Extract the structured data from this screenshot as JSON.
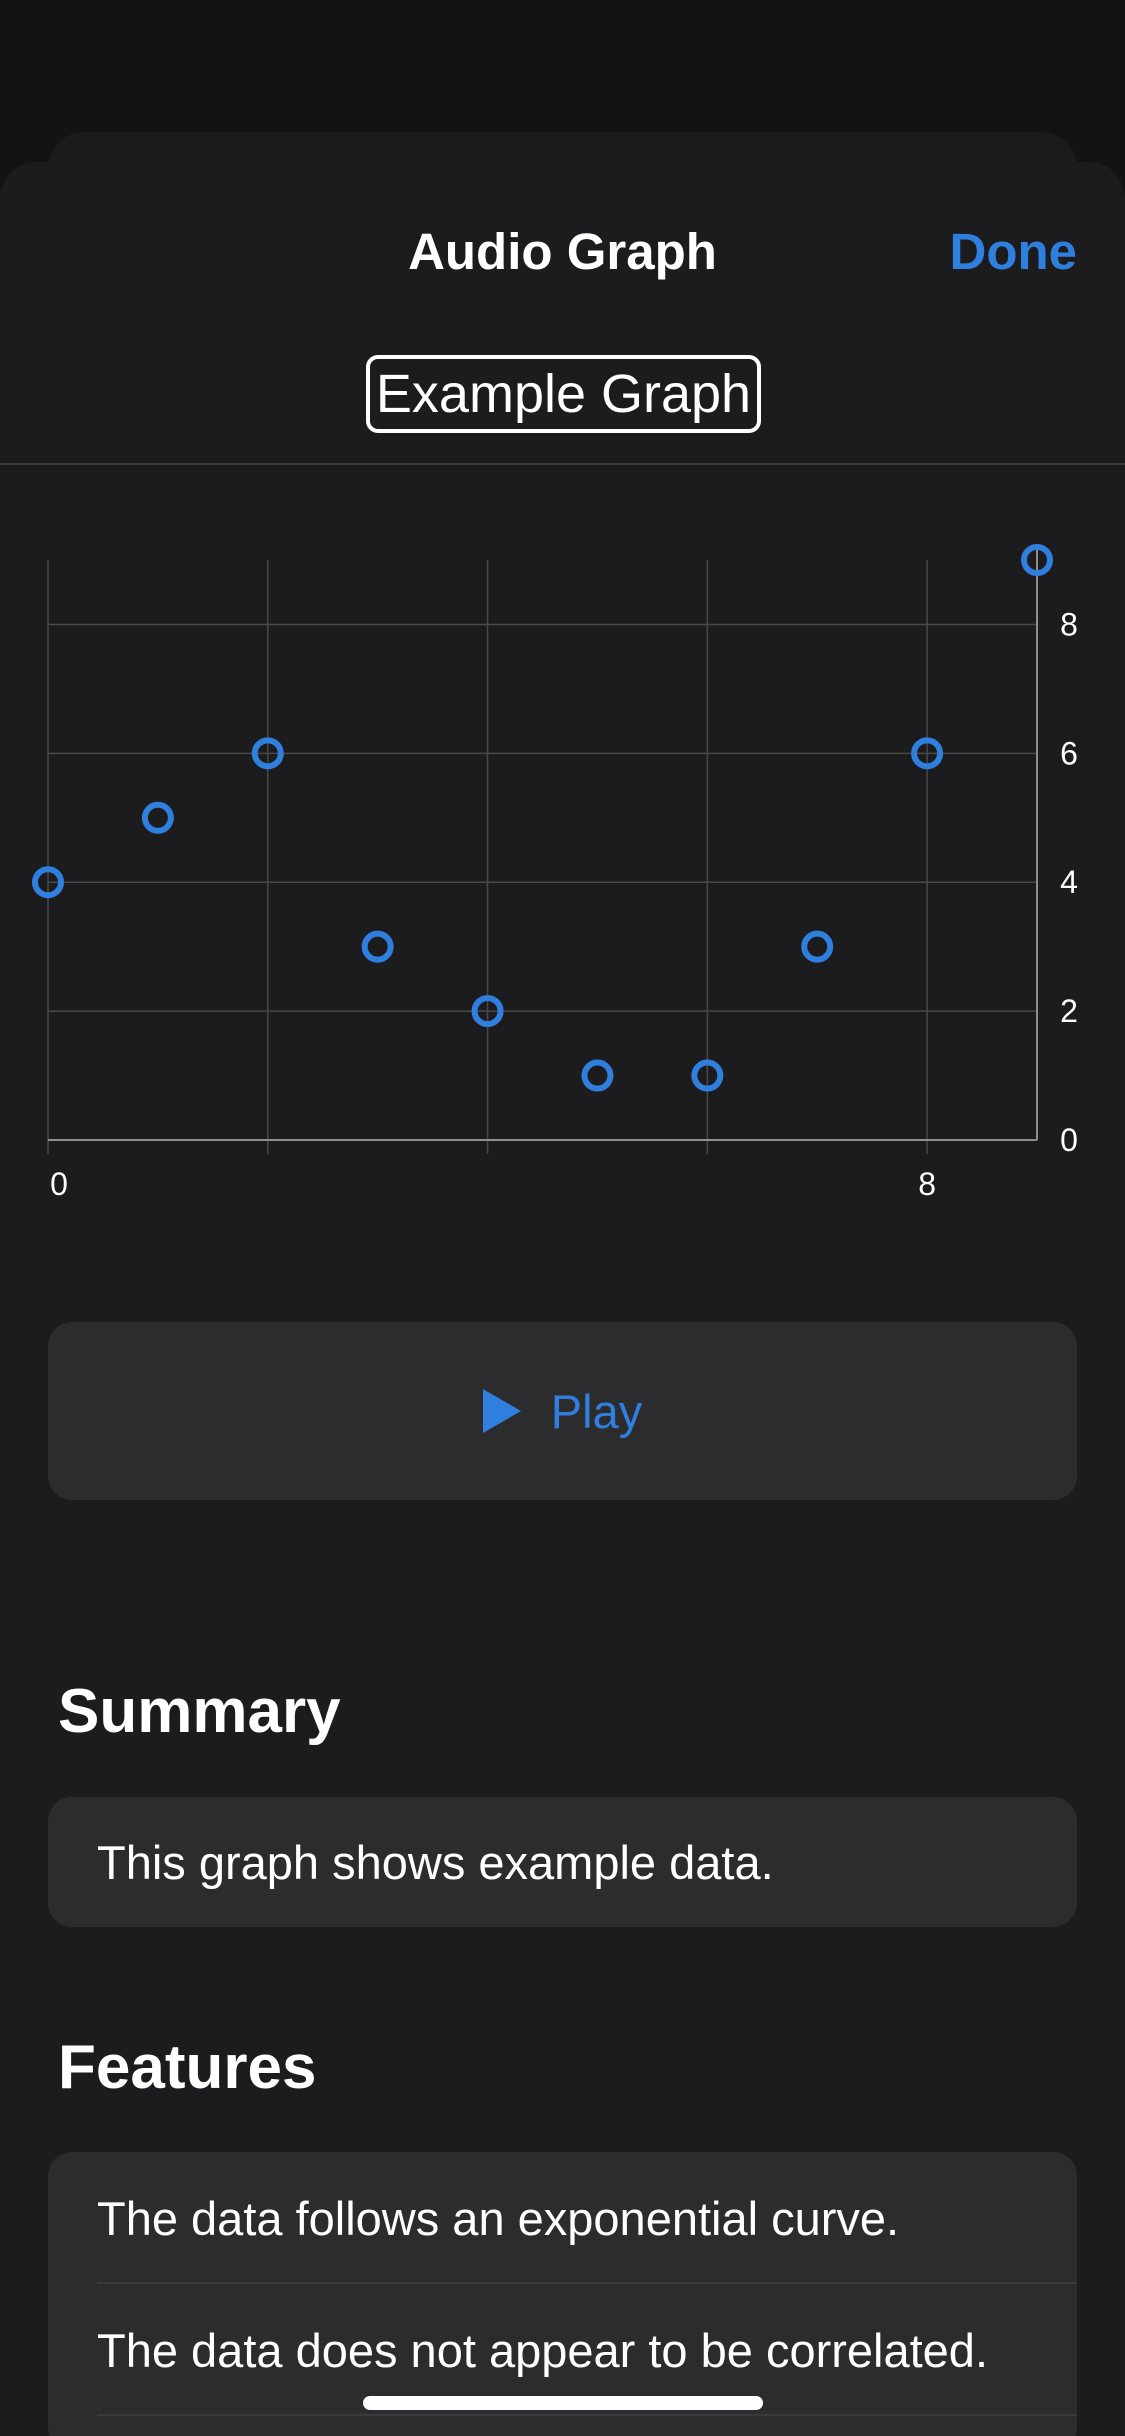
{
  "nav": {
    "title": "Audio Graph",
    "done_label": "Done"
  },
  "graph_title": "Example Graph",
  "chart_data": {
    "type": "scatter",
    "x": [
      0,
      1,
      2,
      3,
      4,
      5,
      6,
      7,
      8,
      9
    ],
    "y": [
      4,
      5,
      6,
      3,
      2,
      1,
      1,
      3,
      6,
      9
    ],
    "xlim": [
      0,
      9
    ],
    "ylim": [
      0,
      9
    ],
    "x_ticks": [
      0,
      8
    ],
    "y_ticks": [
      0,
      2,
      4,
      6,
      8
    ],
    "grid": true,
    "y_axis_position": "right",
    "marker": "hollow-circle",
    "color": "#2f7fde",
    "grid_color": "#48484a"
  },
  "play": {
    "label": "Play"
  },
  "summary": {
    "header": "Summary",
    "text": "This graph shows example data."
  },
  "features": {
    "header": "Features",
    "items": [
      "The data follows an exponential curve.",
      "The data does not appear to be correlated."
    ]
  },
  "colors": {
    "accent": "#2f7fde",
    "background": "#1c1c1e",
    "card": "#2c2c2e"
  }
}
